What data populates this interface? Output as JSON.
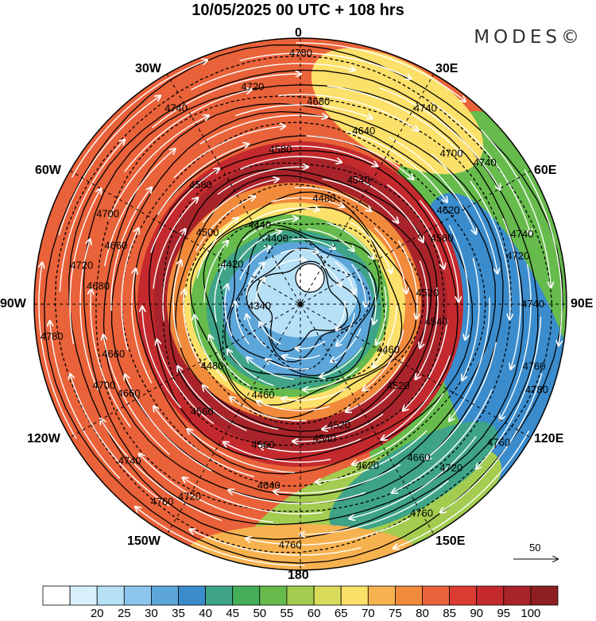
{
  "title": "10/05/2025  00 UTC  + 108 hrs",
  "brand": "MODES©",
  "longitude_labels": {
    "n": "0",
    "e30": "30E",
    "e60": "60E",
    "e90": "90E",
    "e120": "120E",
    "e150": "150E",
    "s": "180",
    "w150": "150W",
    "w120": "120W",
    "w90": "90W",
    "w60": "60W",
    "w30": "30W"
  },
  "vector_reference": "50",
  "colorbar": {
    "colors": [
      "#ffffff",
      "#d8f0fb",
      "#b6e0f6",
      "#8cc6ec",
      "#5da6da",
      "#3b8ccc",
      "#3fa487",
      "#44ae58",
      "#66bb4c",
      "#a3cc50",
      "#d9dc5a",
      "#fbe06a",
      "#f7b250",
      "#f28a3c",
      "#e9623a",
      "#dc3b32",
      "#c42a2d",
      "#a9242a",
      "#8d1f22"
    ],
    "labels": [
      "20",
      "25",
      "30",
      "35",
      "40",
      "45",
      "50",
      "55",
      "60",
      "65",
      "70",
      "75",
      "80",
      "85",
      "90",
      "95",
      "100"
    ]
  },
  "contour_labels": [
    "4740",
    "4740",
    "4680",
    "4660",
    "4720",
    "4620",
    "4560",
    "4440",
    "4780",
    "4700",
    "4540",
    "4520",
    "4420",
    "4720",
    "4760",
    "4580",
    "4520",
    "4340",
    "4700",
    "4760",
    "4580",
    "4540",
    "4480",
    "4480",
    "4760",
    "4660",
    "4580",
    "4460",
    "4400",
    "4460",
    "4660",
    "4740",
    "4540",
    "4500",
    "4520",
    "4560",
    "4780",
    "4720",
    "4680",
    "4740",
    "4640",
    "4740",
    "4760",
    "4660",
    "4640",
    "4620",
    "4700",
    "4740",
    "4720",
    "4720",
    "4760",
    "4780"
  ]
}
